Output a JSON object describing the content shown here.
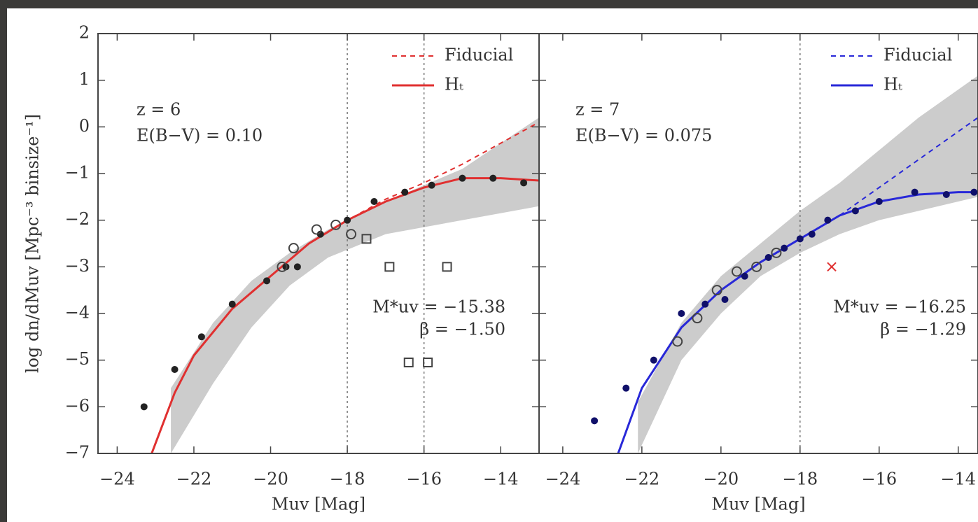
{
  "chart_data": [
    {
      "type": "line",
      "xlim": [
        -24.5,
        -13
      ],
      "ylim": [
        -7,
        2
      ],
      "xticks": [
        {
          "value": -24,
          "label": "−24"
        },
        {
          "value": -22,
          "label": "−22"
        },
        {
          "value": -20,
          "label": "−20"
        },
        {
          "value": -18,
          "label": "−18"
        },
        {
          "value": -16,
          "label": "−16"
        },
        {
          "value": -14,
          "label": "−14"
        }
      ],
      "yticks": [
        {
          "value": -7,
          "label": "−7"
        },
        {
          "value": -6,
          "label": "−6"
        },
        {
          "value": -5,
          "label": "−5"
        },
        {
          "value": -4,
          "label": "−4"
        },
        {
          "value": -3,
          "label": "−3"
        },
        {
          "value": -2,
          "label": "−2"
        },
        {
          "value": -1,
          "label": "−1"
        },
        0,
        1,
        2
      ],
      "ytick_labels": true,
      "xlabel": "Muv [Mag]",
      "ylabel": "log dn/dMuv [Mpc⁻³ binsize⁻¹]",
      "annotations": [
        "z = 6",
        "E(B−V) = 0.10",
        "M*uv = −15.38",
        "β = −1.50"
      ],
      "legend": "upper right",
      "vlines": [
        -18,
        -16
      ],
      "band": {
        "color": "#cccccc",
        "x": [
          -22.6,
          -21.5,
          -20.5,
          -19.5,
          -18.5,
          -17,
          -15,
          -13
        ],
        "high": [
          -5.6,
          -4.2,
          -3.3,
          -2.7,
          -2.2,
          -1.6,
          -0.9,
          0.2
        ],
        "low": [
          -7,
          -5.5,
          -4.3,
          -3.4,
          -2.8,
          -2.3,
          -2.0,
          -1.7
        ]
      },
      "series": [
        {
          "name": "Fiducial",
          "color": "#e03030",
          "dash": true,
          "x": [
            -23.1,
            -22.5,
            -22,
            -21,
            -20,
            -19,
            -18,
            -17,
            -16,
            -15,
            -14,
            -13
          ],
          "values": [
            -7,
            -5.7,
            -4.9,
            -3.9,
            -3.2,
            -2.5,
            -2.0,
            -1.55,
            -1.2,
            -0.8,
            -0.35,
            0.1
          ]
        },
        {
          "name": "Hₜ",
          "color": "#e03030",
          "dash": false,
          "x": [
            -23.1,
            -22.5,
            -22,
            -21,
            -20,
            -19,
            -18,
            -17,
            -16,
            -15,
            -14,
            -13
          ],
          "values": [
            -7,
            -5.7,
            -4.9,
            -3.9,
            -3.2,
            -2.5,
            -2.0,
            -1.6,
            -1.3,
            -1.1,
            -1.1,
            -1.15
          ]
        }
      ],
      "points": [
        {
          "marker": "filled",
          "color": "#222222",
          "x": [
            -23.3,
            -22.5,
            -21.8,
            -21,
            -20.1,
            -19.6,
            -19.3,
            -18.7,
            -18.0,
            -17.3,
            -16.5,
            -15.8,
            -15,
            -14.2,
            -13.4
          ],
          "values": [
            -6.0,
            -5.2,
            -4.5,
            -3.8,
            -3.3,
            -3.0,
            -3.0,
            -2.3,
            -2.0,
            -1.6,
            -1.4,
            -1.25,
            -1.1,
            -1.1,
            -1.2
          ]
        },
        {
          "marker": "circle",
          "color": "#444444",
          "x": [
            -19.7,
            -19.4,
            -18.8,
            -18.3,
            -17.9
          ],
          "values": [
            -3.0,
            -2.6,
            -2.2,
            -2.1,
            -2.3
          ]
        },
        {
          "marker": "square",
          "color": "#444444",
          "x": [
            -17.5,
            -16.9,
            -15.4,
            -16.4,
            -15.9
          ],
          "values": [
            -2.4,
            -3.0,
            -3.0,
            -5.05,
            -5.05
          ]
        }
      ]
    },
    {
      "type": "line",
      "xlim": [
        -24.6,
        -13.5
      ],
      "ylim": [
        -7,
        2
      ],
      "xticks": [
        {
          "value": -24,
          "label": "−24"
        },
        {
          "value": -22,
          "label": "−22"
        },
        {
          "value": -20,
          "label": "−20"
        },
        {
          "value": -18,
          "label": "−18"
        },
        {
          "value": -16,
          "label": "−16"
        },
        {
          "value": -14,
          "label": "−14"
        }
      ],
      "yticks": [
        -7,
        -6,
        -5,
        -4,
        -3,
        -2,
        -1,
        0,
        1,
        2
      ],
      "ytick_labels": false,
      "xlabel": "Muv [Mag]",
      "annotations": [
        "z = 7",
        "E(B−V) = 0.075",
        "M*uv = −16.25",
        "β = −1.29"
      ],
      "legend": "upper right",
      "vlines": [
        -18
      ],
      "band": {
        "color": "#cccccc",
        "x": [
          -22.1,
          -21,
          -20,
          -19,
          -18,
          -17,
          -16,
          -15,
          -14,
          -13.5
        ],
        "high": [
          -5.9,
          -4.2,
          -3.2,
          -2.5,
          -1.8,
          -1.2,
          -0.5,
          0.2,
          0.8,
          1.1
        ],
        "low": [
          -7,
          -5.0,
          -4.0,
          -3.2,
          -2.7,
          -2.3,
          -2.0,
          -1.8,
          -1.6,
          -1.5
        ]
      },
      "series": [
        {
          "name": "Fiducial",
          "color": "#2828d8",
          "dash": true,
          "x": [
            -22.6,
            -22,
            -21,
            -20,
            -19,
            -18,
            -17,
            -16,
            -15,
            -14,
            -13.5
          ],
          "values": [
            -7,
            -5.6,
            -4.3,
            -3.5,
            -2.9,
            -2.4,
            -1.9,
            -1.3,
            -0.7,
            -0.1,
            0.2
          ]
        },
        {
          "name": "Hₜ",
          "color": "#2828d8",
          "dash": false,
          "x": [
            -22.6,
            -22,
            -21,
            -20,
            -19,
            -18,
            -17,
            -16,
            -15,
            -14,
            -13.5
          ],
          "values": [
            -7,
            -5.6,
            -4.3,
            -3.5,
            -2.9,
            -2.4,
            -1.9,
            -1.6,
            -1.45,
            -1.4,
            -1.4
          ]
        }
      ],
      "points": [
        {
          "marker": "filled",
          "color": "#10106a",
          "x": [
            -23.2,
            -22.4,
            -21.7,
            -21,
            -20.4,
            -19.9,
            -19.4,
            -18.8,
            -18.4,
            -18,
            -17.7,
            -17.3,
            -16.6,
            -16,
            -15.1,
            -14.3,
            -13.6
          ],
          "values": [
            -6.3,
            -5.6,
            -5.0,
            -4.0,
            -3.8,
            -3.7,
            -3.2,
            -2.8,
            -2.6,
            -2.4,
            -2.3,
            -2.0,
            -1.8,
            -1.6,
            -1.4,
            -1.45,
            -1.4
          ]
        },
        {
          "marker": "circle",
          "color": "#444444",
          "x": [
            -21.1,
            -20.6,
            -20.1,
            -19.6,
            -19.1,
            -18.6
          ],
          "values": [
            -4.6,
            -4.1,
            -3.5,
            -3.1,
            -3.0,
            -2.7
          ]
        },
        {
          "marker": "cross",
          "color": "#e03030",
          "x": [
            -17.2
          ],
          "values": [
            -3.0
          ]
        }
      ]
    }
  ]
}
